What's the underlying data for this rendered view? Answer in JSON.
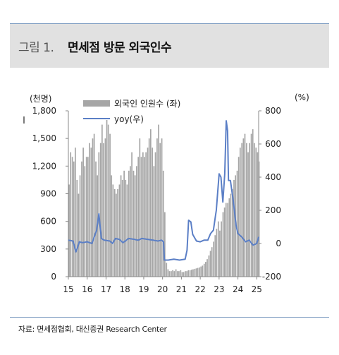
{
  "figure": {
    "label": "그림 1.",
    "title": "면세점 방문 외국인수",
    "source": "자료: 면세점협회, 대신증권 Research Center"
  },
  "chart_data": {
    "type": "bar+line",
    "left_unit": "(천명)",
    "right_unit": "(%)",
    "legend_position": "top-left",
    "grid": false,
    "left_axis": {
      "min": 0,
      "max": 1800,
      "ticks": [
        "0",
        "300",
        "600",
        "900",
        "1,200",
        "1,500",
        "1,800"
      ]
    },
    "right_axis": {
      "min": -200,
      "max": 800,
      "ticks": [
        "-200",
        "0",
        "200",
        "400",
        "600",
        "800"
      ]
    },
    "x_ticks": [
      "15",
      "16",
      "17",
      "18",
      "19",
      "20",
      "21",
      "22",
      "23",
      "24",
      "25"
    ],
    "x_range": [
      2015,
      2025.1
    ],
    "series": [
      {
        "name": "외국인 인원수 (좌)",
        "kind": "bar",
        "axis": "left",
        "color": "#a6a6a6",
        "x": [
          2015.0,
          2015.08,
          2015.17,
          2015.25,
          2015.33,
          2015.42,
          2015.5,
          2015.58,
          2015.67,
          2015.75,
          2015.83,
          2015.92,
          2016.0,
          2016.08,
          2016.17,
          2016.25,
          2016.33,
          2016.42,
          2016.5,
          2016.58,
          2016.67,
          2016.75,
          2016.83,
          2016.92,
          2017.0,
          2017.08,
          2017.17,
          2017.25,
          2017.33,
          2017.42,
          2017.5,
          2017.58,
          2017.67,
          2017.75,
          2017.83,
          2017.92,
          2018.0,
          2018.08,
          2018.17,
          2018.25,
          2018.33,
          2018.42,
          2018.5,
          2018.58,
          2018.67,
          2018.75,
          2018.83,
          2018.92,
          2019.0,
          2019.08,
          2019.17,
          2019.25,
          2019.33,
          2019.42,
          2019.5,
          2019.58,
          2019.67,
          2019.75,
          2019.83,
          2019.92,
          2020.0,
          2020.08,
          2020.17,
          2020.25,
          2020.33,
          2020.42,
          2020.5,
          2020.58,
          2020.67,
          2020.75,
          2020.83,
          2020.92,
          2021.0,
          2021.08,
          2021.17,
          2021.25,
          2021.33,
          2021.42,
          2021.5,
          2021.58,
          2021.67,
          2021.75,
          2021.83,
          2021.92,
          2022.0,
          2022.08,
          2022.17,
          2022.25,
          2022.33,
          2022.42,
          2022.5,
          2022.58,
          2022.67,
          2022.75,
          2022.83,
          2022.92,
          2023.0,
          2023.08,
          2023.17,
          2023.25,
          2023.33,
          2023.42,
          2023.5,
          2023.58,
          2023.67,
          2023.75,
          2023.83,
          2023.92,
          2024.0,
          2024.08,
          2024.17,
          2024.25,
          2024.33,
          2024.42,
          2024.5,
          2024.58,
          2024.67,
          2024.75,
          2024.83,
          2024.92,
          2025.0,
          2025.08
        ],
        "values": [
          1000,
          1350,
          1300,
          1250,
          1400,
          1050,
          900,
          1100,
          1250,
          1400,
          1200,
          1300,
          1300,
          1450,
          1400,
          1500,
          1550,
          1250,
          1100,
          1350,
          1450,
          1650,
          1450,
          1500,
          1700,
          1650,
          1550,
          1100,
          1000,
          950,
          900,
          950,
          1000,
          1100,
          1050,
          1150,
          1050,
          1000,
          1150,
          1200,
          1350,
          1150,
          1100,
          1200,
          1300,
          1500,
          1300,
          1350,
          1300,
          1350,
          1400,
          1500,
          1600,
          1400,
          1200,
          1350,
          1500,
          1650,
          1450,
          1500,
          1150,
          700,
          150,
          80,
          60,
          60,
          70,
          60,
          80,
          60,
          60,
          70,
          50,
          50,
          60,
          60,
          70,
          70,
          75,
          80,
          85,
          90,
          95,
          100,
          110,
          120,
          140,
          160,
          190,
          230,
          280,
          320,
          380,
          450,
          520,
          600,
          500,
          600,
          700,
          750,
          800,
          800,
          850,
          900,
          950,
          1050,
          1100,
          1150,
          1300,
          1400,
          1450,
          1500,
          1550,
          1450,
          1350,
          1450,
          1550,
          1600,
          1450,
          1400,
          1350,
          1250
        ]
      },
      {
        "name": "yoy(우)",
        "kind": "line",
        "axis": "right",
        "color": "#5b7fc6",
        "x": [
          2015.0,
          2015.25,
          2015.4,
          2015.5,
          2015.58,
          2015.75,
          2016.0,
          2016.25,
          2016.5,
          2016.62,
          2016.75,
          2016.9,
          2017.2,
          2017.35,
          2017.5,
          2017.7,
          2017.9,
          2018.2,
          2018.5,
          2018.7,
          2018.9,
          2019.2,
          2019.5,
          2019.75,
          2019.95,
          2020.05,
          2020.1,
          2020.3,
          2020.6,
          2020.9,
          2021.2,
          2021.3,
          2021.38,
          2021.5,
          2021.6,
          2021.8,
          2022.0,
          2022.2,
          2022.4,
          2022.55,
          2022.7,
          2022.8,
          2022.85,
          2023.0,
          2023.1,
          2023.2,
          2023.3,
          2023.38,
          2023.45,
          2023.5,
          2023.6,
          2023.75,
          2023.9,
          2024.0,
          2024.2,
          2024.4,
          2024.6,
          2024.8,
          2025.0,
          2025.1
        ],
        "values": [
          20,
          15,
          -50,
          -20,
          10,
          5,
          10,
          0,
          80,
          180,
          30,
          20,
          15,
          0,
          30,
          25,
          5,
          30,
          25,
          20,
          30,
          25,
          20,
          15,
          20,
          10,
          -100,
          -100,
          -95,
          -100,
          -95,
          -40,
          140,
          130,
          55,
          15,
          10,
          20,
          20,
          60,
          80,
          160,
          200,
          420,
          400,
          250,
          420,
          740,
          680,
          380,
          380,
          260,
          110,
          60,
          40,
          10,
          20,
          -10,
          0,
          40
        ]
      }
    ]
  }
}
